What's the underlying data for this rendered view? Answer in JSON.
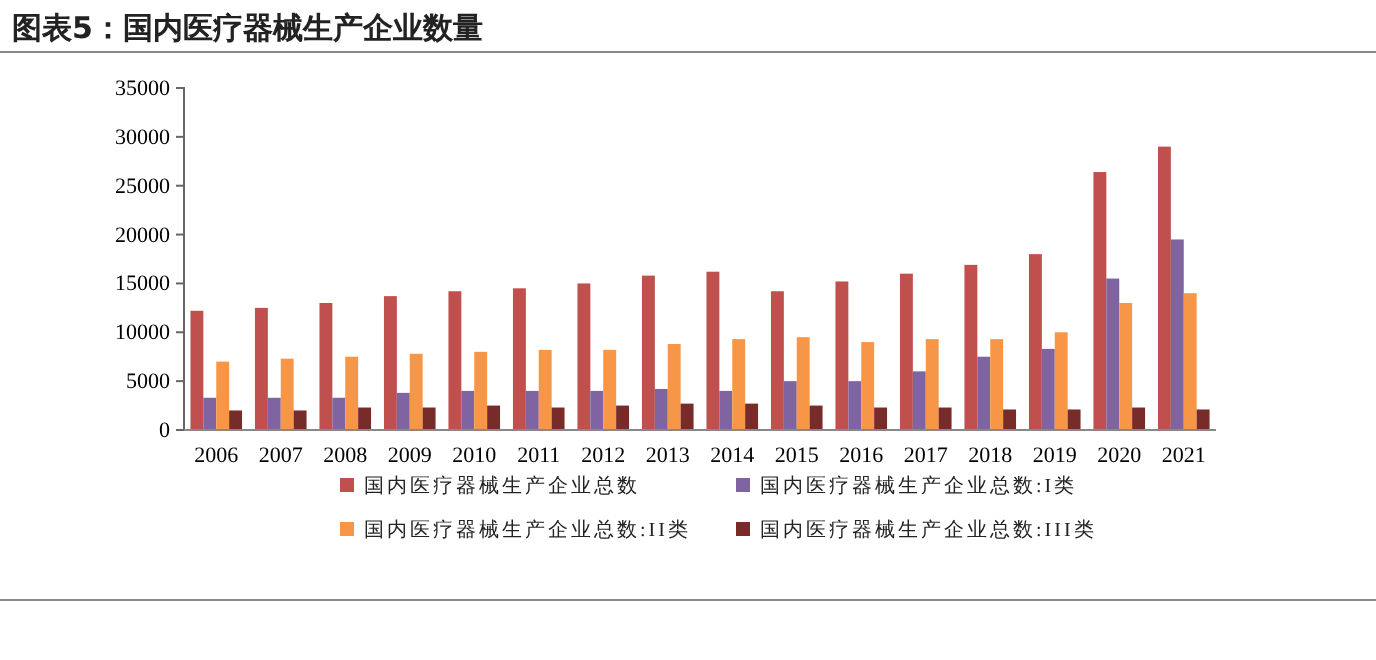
{
  "chart_data": {
    "type": "bar",
    "title": "图表5：国内医疗器械生产企业数量",
    "categories": [
      "2006",
      "2007",
      "2008",
      "2009",
      "2010",
      "2011",
      "2012",
      "2013",
      "2014",
      "2015",
      "2016",
      "2017",
      "2018",
      "2019",
      "2020",
      "2021"
    ],
    "series": [
      {
        "name": "国内医疗器械生产企业总数",
        "color": "#c0504d",
        "values": [
          12200,
          12500,
          13000,
          13700,
          14200,
          14500,
          15000,
          15800,
          16200,
          14200,
          15200,
          16000,
          16900,
          18000,
          26400,
          29000
        ]
      },
      {
        "name": "国内医疗器械生产企业总数:I类",
        "color": "#8064a2",
        "values": [
          3300,
          3300,
          3300,
          3800,
          4000,
          4000,
          4000,
          4200,
          4000,
          5000,
          5000,
          6000,
          7500,
          8300,
          15500,
          19500
        ]
      },
      {
        "name": "国内医疗器械生产企业总数:II类",
        "color": "#f79646",
        "values": [
          7000,
          7300,
          7500,
          7800,
          8000,
          8200,
          8200,
          8800,
          9300,
          9500,
          9000,
          9300,
          9300,
          10000,
          13000,
          14000
        ]
      },
      {
        "name": "国内医疗器械生产企业总数:III类",
        "color": "#772c2a",
        "values": [
          2000,
          2000,
          2300,
          2300,
          2500,
          2300,
          2500,
          2700,
          2700,
          2500,
          2300,
          2300,
          2100,
          2100,
          2300,
          2100
        ]
      }
    ],
    "ylim": [
      0,
      35000
    ],
    "yticks": [
      0,
      5000,
      10000,
      15000,
      20000,
      25000,
      30000,
      35000
    ],
    "grid": false,
    "legend": "bottom"
  }
}
